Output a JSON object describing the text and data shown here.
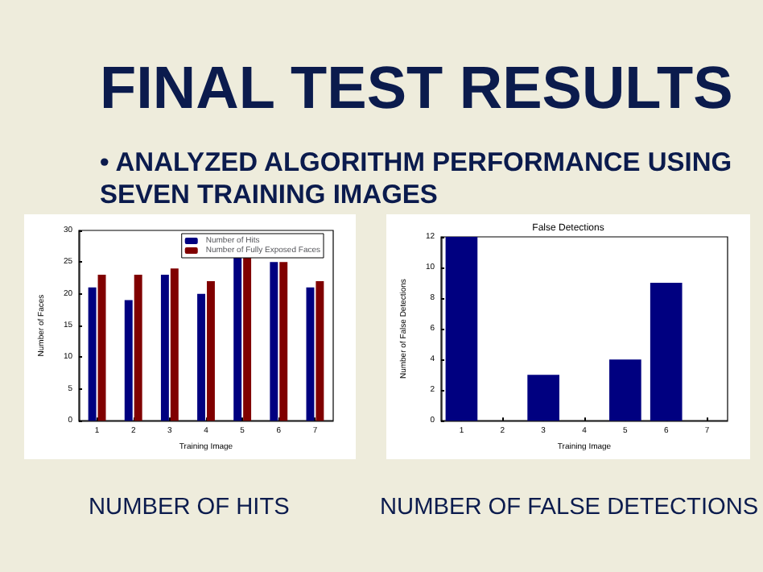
{
  "chart_data": [
    {
      "type": "bar",
      "title": "FINAL TEST RESULTS",
      "subtitle": "• ANALYZED ALGORITHM PERFORMANCE USING SEVEN TRAINING IMAGES",
      "xlabel": "Training Image",
      "ylabel": "Number of Faces",
      "categories": [
        "1",
        "2",
        "3",
        "4",
        "5",
        "6",
        "7"
      ],
      "series": [
        {
          "name": "Number of Hits",
          "color": "#000080",
          "values": [
            21,
            19,
            23,
            20,
            26,
            25,
            21
          ]
        },
        {
          "name": "Number of Fully Exposed Faces",
          "color": "#800000",
          "values": [
            23,
            23,
            24,
            22,
            26,
            25,
            22
          ]
        }
      ],
      "ylim": [
        0,
        30
      ],
      "yticks": [
        0,
        5,
        10,
        15,
        20,
        25,
        30
      ],
      "legend": "top right",
      "grid": false,
      "annotations": [
        "NUMBER OF HITS"
      ]
    },
    {
      "type": "bar",
      "title": "False Detections",
      "xlabel": "Training Image",
      "ylabel": "Number of False Detections",
      "categories": [
        "1",
        "2",
        "3",
        "4",
        "5",
        "6",
        "7"
      ],
      "series": [
        {
          "color": "#000080",
          "values": [
            12,
            0,
            3,
            0,
            4,
            9,
            0
          ]
        }
      ],
      "ylim": [
        0,
        12
      ],
      "yticks": [
        0,
        2,
        4,
        6,
        8,
        10,
        12
      ],
      "grid": false,
      "annotations": [
        "NUMBER OF FALSE DETECTIONS"
      ]
    }
  ]
}
